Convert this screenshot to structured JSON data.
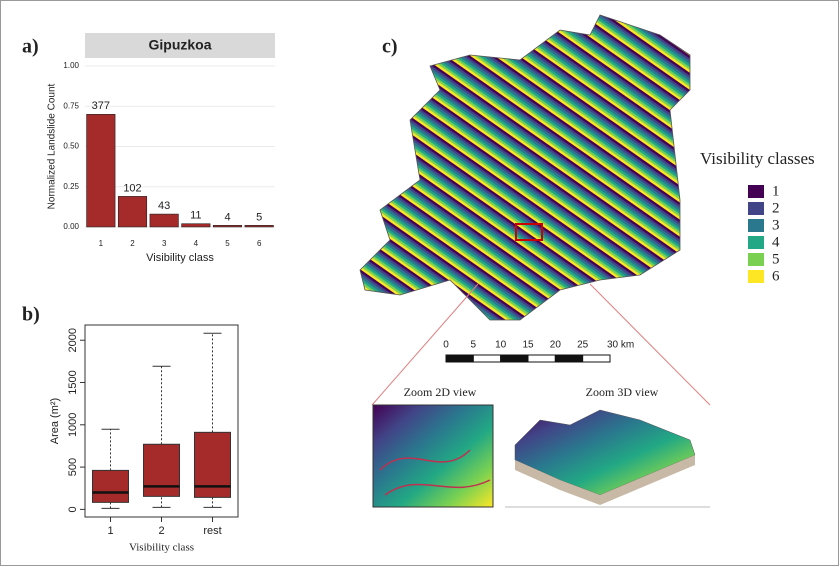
{
  "chart_data": [
    {
      "type": "bar",
      "panel": "a)",
      "title": "Gipuzkoa",
      "categories": [
        "1",
        "2",
        "3",
        "4",
        "5",
        "6"
      ],
      "values": [
        0.7,
        0.19,
        0.08,
        0.02,
        0.01,
        0.01
      ],
      "counts": [
        377,
        102,
        43,
        11,
        4,
        5
      ],
      "color": "#a52a2a",
      "ylim": [
        -0.05,
        1.05
      ],
      "yticks": [
        {
          "value": 0,
          "label": "0.00"
        },
        {
          "value": 0.25,
          "label": "0.25"
        },
        {
          "value": 0.5,
          "label": "0.50"
        },
        {
          "value": 0.75,
          "label": "0.75"
        },
        {
          "value": 1,
          "label": "1.00"
        }
      ],
      "xlabel": "Visibility class",
      "ylabel": "Normalized Landslide Count",
      "grid": true
    },
    {
      "type": "box",
      "panel": "b)",
      "categories": [
        "1",
        "2",
        "rest"
      ],
      "whisker_low": [
        12,
        24,
        24
      ],
      "q1": [
        83,
        154,
        142
      ],
      "median": [
        200,
        272,
        272
      ],
      "q3": [
        461,
        770,
        911
      ],
      "whisker_high": [
        947,
        1692,
        2083
      ],
      "color": "#a52a2a",
      "ylim": [
        -90,
        2180
      ],
      "yticks": [
        0,
        500,
        1000,
        1500,
        2000
      ],
      "xlabel": "Visibility class",
      "ylabel": "Area (m²)"
    }
  ],
  "map": {
    "panel": "c)",
    "legend_title": "Visibility classes",
    "classes": [
      "1",
      "2",
      "3",
      "4",
      "5",
      "6"
    ],
    "colors": [
      "#440154",
      "#414487",
      "#2a788e",
      "#22a884",
      "#7ad151",
      "#fde725"
    ],
    "scale_ticks": [
      0,
      5,
      10,
      15,
      20,
      25,
      {
        "value": 30,
        "label": "30 km"
      }
    ],
    "zoom_2d": "Zoom 2D view",
    "zoom_3d": "Zoom 3D view"
  }
}
